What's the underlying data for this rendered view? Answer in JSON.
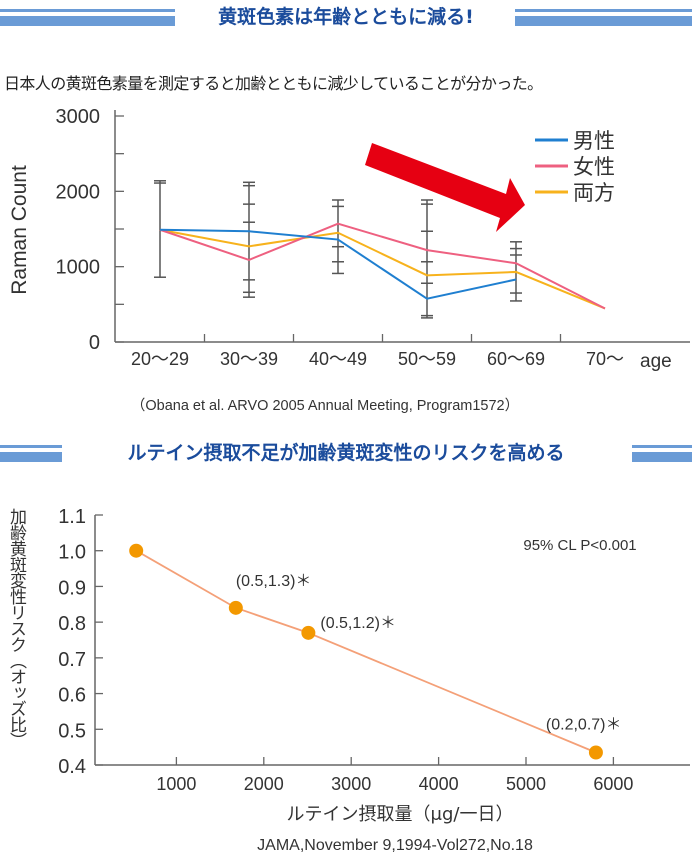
{
  "section1": {
    "banner_title": "黄斑色素は年齢とともに減る!",
    "lead_text": "日本人の黄斑色素量を測定すると加齢とともに減少していることが分かった。"
  },
  "section2": {
    "banner_title": "ルテイン摂取不足が加齢黄斑変性のリスクを高める"
  },
  "colors": {
    "banner_stripe": "#6a9bd6",
    "banner_text": "#1b4c9c",
    "male": "#1f7fd0",
    "female": "#ee6080",
    "both": "#f7b21c",
    "arrow": "#e60012",
    "risk_line": "#f4a078",
    "risk_point": "#f39800"
  },
  "chart_data": [
    {
      "type": "line",
      "ylabel": "Raman Count",
      "xlabel": "age",
      "ylim": [
        0,
        3000
      ],
      "yticks": [
        "0",
        "1000",
        "2000",
        "3000"
      ],
      "yminor_step": 500,
      "categories": [
        "20～29",
        "30～39",
        "40～49",
        "50～59",
        "60～69",
        "70～"
      ],
      "series": [
        {
          "name": "男性",
          "color": "#1f7fd0",
          "values": [
            1490,
            1470,
            1360,
            575,
            830,
            null
          ]
        },
        {
          "name": "女性",
          "color": "#ee6080",
          "values": [
            1490,
            1090,
            1570,
            1220,
            1045,
            445
          ]
        },
        {
          "name": "両方",
          "color": "#f7b21c",
          "values": [
            1490,
            1270,
            1450,
            885,
            930,
            445
          ]
        }
      ],
      "error_bars": [
        {
          "category": "20～29",
          "caps": [
            2140,
            2110,
            860
          ]
        },
        {
          "category": "30～39",
          "caps": [
            2120,
            2075,
            1830,
            1590,
            825,
            660,
            595
          ]
        },
        {
          "category": "40～49",
          "caps": [
            1885,
            1800,
            1265,
            1065,
            910
          ]
        },
        {
          "category": "50～59",
          "caps": [
            1885,
            1830,
            1470,
            1065,
            780,
            350,
            320
          ]
        },
        {
          "category": "60～69",
          "caps": [
            1330,
            1240,
            1155,
            650,
            545
          ]
        }
      ],
      "legend_position": "top-right",
      "annotation_arrow": "decreasing trend",
      "source": "（Obana et al. ARVO 2005 Annual Meeting, Program1572）"
    },
    {
      "type": "line",
      "ylabel": "加齢黄斑変性リスク（オッズ比）",
      "xlabel": "ルテイン摂取量（μg/一日）",
      "ylim": [
        0.4,
        1.1
      ],
      "yticks": [
        "0.4",
        "0.5",
        "0.6",
        "0.7",
        "0.8",
        "0.9",
        "1.0",
        "1.1"
      ],
      "xticks": [
        "1000",
        "2000",
        "3000",
        "4000",
        "5000",
        "6000"
      ],
      "xlim": [
        0,
        6800
      ],
      "points": [
        {
          "x": 540,
          "y": 1.0,
          "label": ""
        },
        {
          "x": 1680,
          "y": 0.84,
          "label": "(0.5,1.3)＊"
        },
        {
          "x": 2510,
          "y": 0.77,
          "label": "(0.5,1.2)＊"
        },
        {
          "x": 5800,
          "y": 0.435,
          "label": "(0.2,0.7)＊"
        }
      ],
      "note": "95% CL P<0.001",
      "source": "JAMA,November 9,1994-Vol272,No.18"
    }
  ]
}
